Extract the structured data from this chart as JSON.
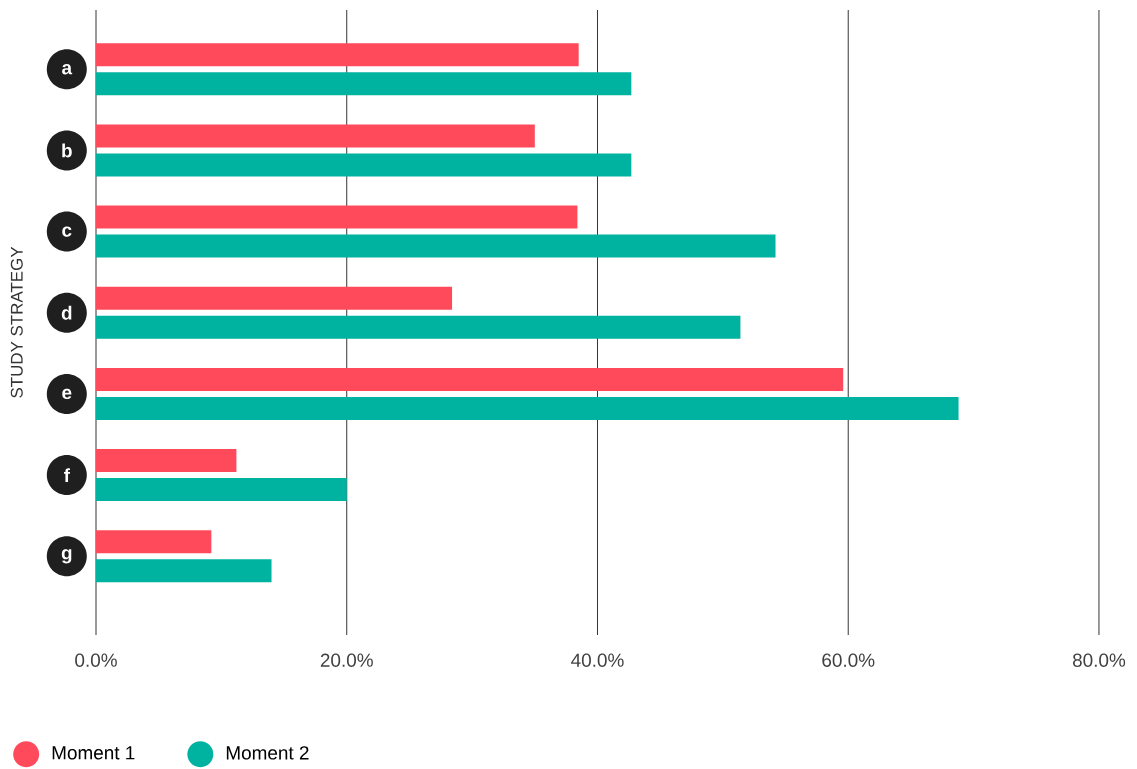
{
  "chart_data": {
    "type": "bar",
    "orientation": "horizontal",
    "ylabel": "STUDY STRATEGY",
    "categories": [
      "a",
      "b",
      "c",
      "d",
      "e",
      "f",
      "g"
    ],
    "series": [
      {
        "name": "Moment 1",
        "color": "#ff4a5c",
        "values": [
          38.5,
          35.0,
          38.4,
          28.4,
          59.6,
          11.2,
          9.2
        ]
      },
      {
        "name": "Moment 2",
        "color": "#00b3a1",
        "values": [
          42.7,
          42.7,
          54.2,
          51.4,
          68.8,
          20.0,
          14.0
        ]
      }
    ],
    "xlim": [
      0,
      80
    ],
    "xticks": [
      {
        "value": 0,
        "label": "0.0%"
      },
      {
        "value": 20,
        "label": "20.0%"
      },
      {
        "value": 40,
        "label": "40.0%"
      },
      {
        "value": 60,
        "label": "60.0%"
      },
      {
        "value": 80,
        "label": "80.0%"
      }
    ],
    "grid": "x",
    "legend": "bottom left"
  }
}
